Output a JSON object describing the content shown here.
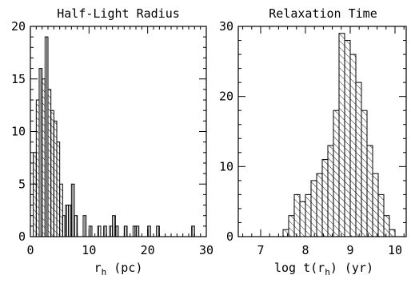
{
  "chart_data": [
    {
      "type": "bar",
      "title": "Half-Light Radius",
      "xlabel": "r_h (pc)",
      "xlabel_main": "r",
      "xlabel_sub": "h",
      "xlabel_tail": " (pc)",
      "ylabel": "",
      "xlim": [
        0,
        30
      ],
      "ylim": [
        0,
        20
      ],
      "xticks": [
        "0",
        "10",
        "20",
        "30"
      ],
      "yticks": [
        "0",
        "5",
        "10",
        "15",
        "20"
      ],
      "bin_width": 0.5,
      "bins": [
        {
          "x0": 0.5,
          "count": 8,
          "hatch": "diag"
        },
        {
          "x0": 1.0,
          "count": 13,
          "hatch": "diag"
        },
        {
          "x0": 1.5,
          "count": 16,
          "hatch": "vert"
        },
        {
          "x0": 2.0,
          "count": 15,
          "hatch": "diag"
        },
        {
          "x0": 2.5,
          "count": 19,
          "hatch": "vert"
        },
        {
          "x0": 3.0,
          "count": 14,
          "hatch": "diag"
        },
        {
          "x0": 3.5,
          "count": 12,
          "hatch": "diag"
        },
        {
          "x0": 4.0,
          "count": 11,
          "hatch": "diag"
        },
        {
          "x0": 4.5,
          "count": 9,
          "hatch": "diag"
        },
        {
          "x0": 5.0,
          "count": 5,
          "hatch": "diag"
        },
        {
          "x0": 5.5,
          "count": 2,
          "hatch": "vert"
        },
        {
          "x0": 6.0,
          "count": 3,
          "hatch": "vert"
        },
        {
          "x0": 6.5,
          "count": 3,
          "hatch": "vert"
        },
        {
          "x0": 7.0,
          "count": 5,
          "hatch": "vert"
        },
        {
          "x0": 7.5,
          "count": 2,
          "hatch": "vert"
        },
        {
          "x0": 9.0,
          "count": 2,
          "hatch": "vert"
        },
        {
          "x0": 10.0,
          "count": 1,
          "hatch": "vert"
        },
        {
          "x0": 11.5,
          "count": 1,
          "hatch": "vert"
        },
        {
          "x0": 12.5,
          "count": 1,
          "hatch": "vert"
        },
        {
          "x0": 13.5,
          "count": 1,
          "hatch": "vert"
        },
        {
          "x0": 14.0,
          "count": 2,
          "hatch": "vert"
        },
        {
          "x0": 14.5,
          "count": 1,
          "hatch": "vert"
        },
        {
          "x0": 16.0,
          "count": 1,
          "hatch": "vert"
        },
        {
          "x0": 17.5,
          "count": 1,
          "hatch": "vert"
        },
        {
          "x0": 18.0,
          "count": 1,
          "hatch": "vert"
        },
        {
          "x0": 20.0,
          "count": 1,
          "hatch": "vert"
        },
        {
          "x0": 21.5,
          "count": 1,
          "hatch": "vert"
        },
        {
          "x0": 27.5,
          "count": 1,
          "hatch": "vert"
        }
      ]
    },
    {
      "type": "bar",
      "title": "Relaxation Time",
      "xlabel": "log t(r_h) (yr)",
      "xlabel_main": "log t(r",
      "xlabel_sub": "h",
      "xlabel_tail": ") (yr)",
      "ylabel": "",
      "xlim": [
        6.5,
        10.25
      ],
      "ylim": [
        0,
        30
      ],
      "xticks": [
        "7",
        "8",
        "9",
        "10"
      ],
      "yticks": [
        "0",
        "10",
        "20",
        "30"
      ],
      "bin_width": 0.125,
      "bins": [
        {
          "x0": 7.5,
          "count": 1,
          "hatch": "diag"
        },
        {
          "x0": 7.625,
          "count": 3,
          "hatch": "diag"
        },
        {
          "x0": 7.75,
          "count": 6,
          "hatch": "diag"
        },
        {
          "x0": 7.875,
          "count": 5,
          "hatch": "diag"
        },
        {
          "x0": 8.0,
          "count": 6,
          "hatch": "diag"
        },
        {
          "x0": 8.125,
          "count": 8,
          "hatch": "diag"
        },
        {
          "x0": 8.25,
          "count": 9,
          "hatch": "diag"
        },
        {
          "x0": 8.375,
          "count": 11,
          "hatch": "diag"
        },
        {
          "x0": 8.5,
          "count": 13,
          "hatch": "diag"
        },
        {
          "x0": 8.625,
          "count": 18,
          "hatch": "diag"
        },
        {
          "x0": 8.75,
          "count": 29,
          "hatch": "diag"
        },
        {
          "x0": 8.875,
          "count": 28,
          "hatch": "diag"
        },
        {
          "x0": 9.0,
          "count": 26,
          "hatch": "diag"
        },
        {
          "x0": 9.125,
          "count": 22,
          "hatch": "diag"
        },
        {
          "x0": 9.25,
          "count": 18,
          "hatch": "diag"
        },
        {
          "x0": 9.375,
          "count": 13,
          "hatch": "diag"
        },
        {
          "x0": 9.5,
          "count": 9,
          "hatch": "diag"
        },
        {
          "x0": 9.625,
          "count": 6,
          "hatch": "diag"
        },
        {
          "x0": 9.75,
          "count": 3,
          "hatch": "diag"
        },
        {
          "x0": 9.875,
          "count": 1,
          "hatch": "diag"
        }
      ]
    }
  ]
}
